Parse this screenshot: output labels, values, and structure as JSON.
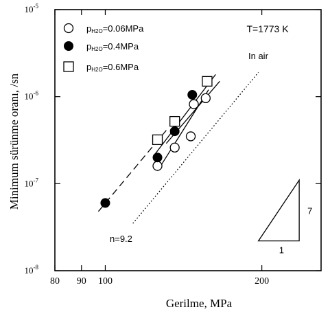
{
  "chart_data": {
    "type": "scatter",
    "title": "",
    "xlabel": "Gerilme, MPa",
    "ylabel": "Minimum sürünme oranı, /sn",
    "x_scale": "log",
    "y_scale": "log",
    "xlim": [
      80,
      260
    ],
    "ylim": [
      1e-08,
      1e-05
    ],
    "grid": false,
    "legend_position": "top-left",
    "x_ticks": [
      {
        "value": 80,
        "label": "80"
      },
      {
        "value": 90,
        "label": "90"
      },
      {
        "value": 100,
        "label": "100"
      },
      {
        "value": 200,
        "label": "200"
      }
    ],
    "y_ticks": [
      {
        "value": 1e-08,
        "base": "10",
        "exp": "-8"
      },
      {
        "value": 1e-07,
        "base": "10",
        "exp": "-7"
      },
      {
        "value": 1e-06,
        "base": "10",
        "exp": "-6"
      },
      {
        "value": 1e-05,
        "base": "10",
        "exp": "-5"
      }
    ],
    "series": [
      {
        "name_prefix": "p",
        "name_sub": "H2O",
        "name_suffix": "=0.06MPa",
        "marker": "open-circle",
        "points": [
          [
            126,
            1.6e-07
          ],
          [
            136,
            2.6e-07
          ],
          [
            146,
            3.5e-07
          ],
          [
            148,
            8.2e-07
          ],
          [
            156,
            9.6e-07
          ]
        ]
      },
      {
        "name_prefix": "p",
        "name_sub": "H2O",
        "name_suffix": "=0.4MPa",
        "marker": "filled-circle",
        "points": [
          [
            100,
            6e-08
          ],
          [
            126,
            2e-07
          ],
          [
            136,
            4e-07
          ],
          [
            147,
            1.05e-06
          ]
        ]
      },
      {
        "name_prefix": "p",
        "name_sub": "H2O",
        "name_suffix": "=0.6MPa",
        "marker": "open-square",
        "points": [
          [
            126,
            3.2e-07
          ],
          [
            136,
            5.2e-07
          ],
          [
            157,
            1.5e-06
          ]
        ]
      }
    ],
    "fit_lines": [
      {
        "style": "long-dash",
        "points": [
          [
            97,
            4.8e-08
          ],
          [
            131,
            4.1e-07
          ]
        ]
      },
      {
        "style": "solid",
        "points": [
          [
            124,
            2.1e-07
          ],
          [
            163,
            1.8e-06
          ]
        ]
      },
      {
        "style": "solid",
        "points": [
          [
            126,
            1.4e-07
          ],
          [
            158,
            1.2e-06
          ]
        ]
      },
      {
        "style": "solid",
        "points": [
          [
            131,
            2.9e-07
          ],
          [
            166,
            1.5e-06
          ]
        ]
      },
      {
        "style": "dotted",
        "points": [
          [
            113,
            3.5e-08
          ],
          [
            197,
            1.9e-06
          ]
        ]
      }
    ],
    "slope_triangle": {
      "corner": [
        197,
        2.2e-08
      ],
      "run_to": 236,
      "rise_to": 1.1e-07,
      "run_label": "1",
      "rise_label": "7"
    },
    "annotations": {
      "temperature": "T=1773 K",
      "air_label": "In air",
      "stress_exponent": "n=9.2"
    }
  }
}
